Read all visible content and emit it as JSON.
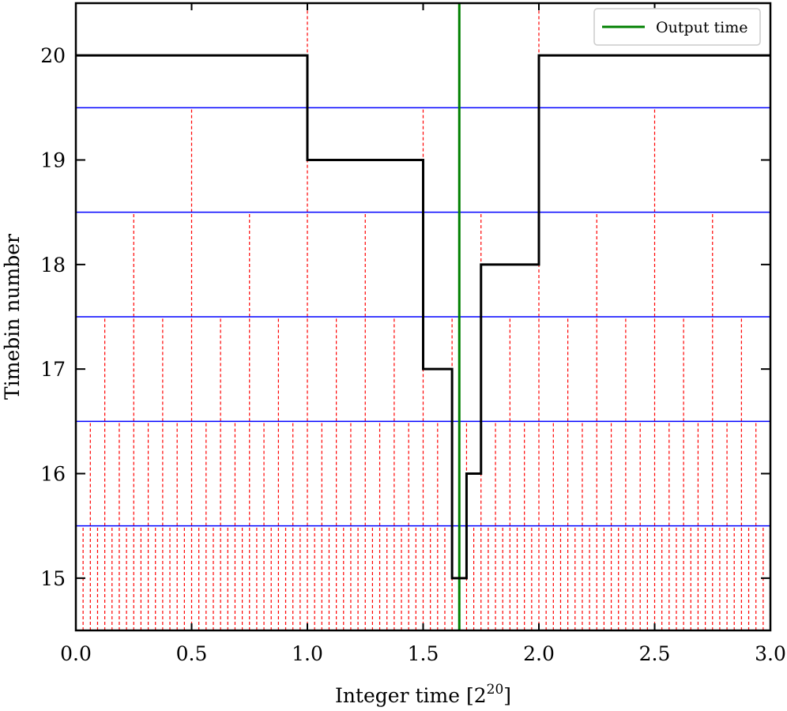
{
  "chart_data": {
    "type": "line",
    "xlabel": "Integer time [2",
    "xlabel_sup": "20",
    "xlabel_close": "]",
    "ylabel": "Timebin number",
    "xlim": [
      0.0,
      3.0
    ],
    "ylim": [
      14.5,
      20.5
    ],
    "xticks": [
      0.0,
      0.5,
      1.0,
      1.5,
      2.0,
      2.5,
      3.0
    ],
    "xtick_labels": [
      "0.0",
      "0.5",
      "1.0",
      "1.5",
      "2.0",
      "2.5",
      "3.0"
    ],
    "yticks": [
      15,
      16,
      17,
      18,
      19,
      20
    ],
    "ytick_labels": [
      "15",
      "16",
      "17",
      "18",
      "19",
      "20"
    ],
    "bin_boundaries": [
      15.5,
      16.5,
      17.5,
      18.5,
      19.5
    ],
    "bin_levels": [
      15,
      16,
      17,
      18,
      19,
      20
    ],
    "grid": false,
    "legend_position": "top-right",
    "output_time": 1.65625,
    "series": [
      {
        "name": "Output time",
        "kind": "vline",
        "color": "#008000",
        "x": 1.65625
      },
      {
        "kind": "step",
        "color": "#000000",
        "x": [
          0.0,
          1.0,
          1.0,
          1.5,
          1.5,
          1.625,
          1.625,
          1.6875,
          1.6875,
          1.75,
          1.75,
          2.0,
          2.0,
          3.0
        ],
        "y": [
          20,
          20,
          19,
          19,
          17,
          17,
          15,
          15,
          16,
          16,
          18,
          18,
          20,
          20
        ]
      }
    ],
    "colors": {
      "step_line": "#000000",
      "output_line": "#008000",
      "bin_boundary": "#0000ff",
      "bin_edges": "#ff0000"
    }
  }
}
